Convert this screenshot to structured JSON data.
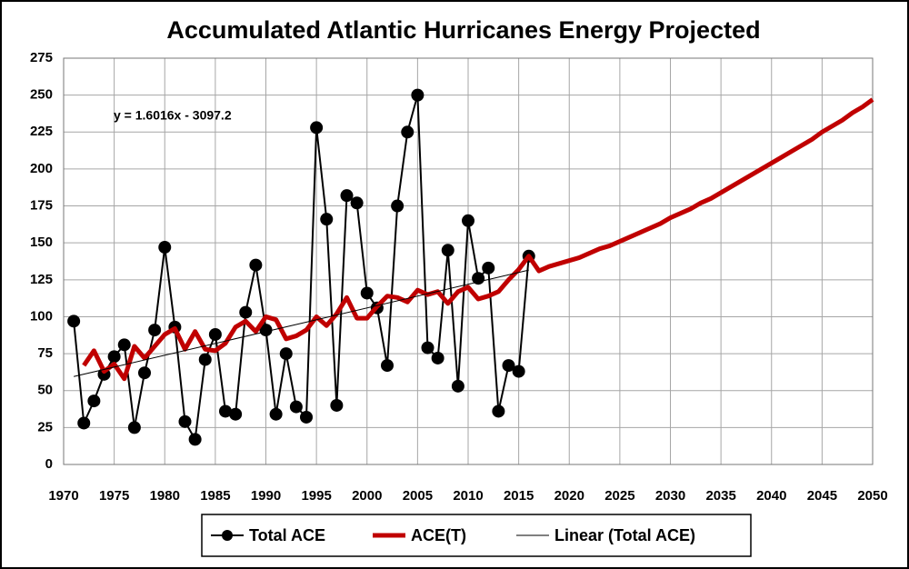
{
  "chart_data": {
    "type": "line",
    "title": "Accumulated Atlantic Hurricanes Energy Projected",
    "annotation": "y = 1.6016x - 3097.2",
    "xlim": [
      1970,
      2050
    ],
    "xticks": [
      1970,
      1975,
      1980,
      1985,
      1990,
      1995,
      2000,
      2005,
      2010,
      2015,
      2020,
      2025,
      2030,
      2035,
      2040,
      2045,
      2050
    ],
    "ylim": [
      0,
      275
    ],
    "yticks": [
      0,
      25,
      50,
      75,
      100,
      125,
      150,
      175,
      200,
      225,
      250,
      275
    ],
    "grid": true,
    "legend": "bottom",
    "series": [
      {
        "name": "Total ACE",
        "color": "#000000",
        "marker": "circle",
        "line_width": 2,
        "x": [
          1971,
          1972,
          1973,
          1974,
          1975,
          1976,
          1977,
          1978,
          1979,
          1980,
          1981,
          1982,
          1983,
          1984,
          1985,
          1986,
          1987,
          1988,
          1989,
          1990,
          1991,
          1992,
          1993,
          1994,
          1995,
          1996,
          1997,
          1998,
          1999,
          2000,
          2001,
          2002,
          2003,
          2004,
          2005,
          2006,
          2007,
          2008,
          2009,
          2010,
          2011,
          2012,
          2013,
          2014,
          2015,
          2016
        ],
        "values": [
          97,
          28,
          43,
          61,
          73,
          81,
          25,
          62,
          91,
          147,
          93,
          29,
          17,
          71,
          88,
          36,
          34,
          103,
          135,
          91,
          34,
          75,
          39,
          32,
          228,
          166,
          40,
          182,
          177,
          116,
          106,
          67,
          175,
          225,
          250,
          79,
          72,
          145,
          53,
          165,
          126,
          133,
          36,
          67,
          63,
          141
        ]
      },
      {
        "name": "ACE(T)",
        "color": "#c00000",
        "line_width": 5,
        "x": [
          1972,
          1973,
          1974,
          1975,
          1976,
          1977,
          1978,
          1979,
          1980,
          1981,
          1982,
          1983,
          1984,
          1985,
          1986,
          1987,
          1988,
          1989,
          1990,
          1991,
          1992,
          1993,
          1994,
          1995,
          1996,
          1997,
          1998,
          1999,
          2000,
          2001,
          2002,
          2003,
          2004,
          2005,
          2006,
          2007,
          2008,
          2009,
          2010,
          2011,
          2012,
          2013,
          2014,
          2015,
          2016,
          2017,
          2018,
          2019,
          2020,
          2021,
          2022,
          2023,
          2024,
          2025,
          2026,
          2027,
          2028,
          2029,
          2030,
          2031,
          2032,
          2033,
          2034,
          2035,
          2036,
          2037,
          2038,
          2039,
          2040,
          2041,
          2042,
          2043,
          2044,
          2045,
          2046,
          2047,
          2048,
          2049,
          2050
        ],
        "values": [
          67,
          77,
          63,
          68,
          58,
          80,
          72,
          80,
          88,
          92,
          78,
          90,
          78,
          77,
          82,
          93,
          97,
          90,
          100,
          98,
          85,
          87,
          91,
          100,
          94,
          102,
          113,
          99,
          99,
          107,
          114,
          113,
          110,
          118,
          115,
          117,
          109,
          117,
          120,
          112,
          114,
          117,
          125,
          132,
          141,
          131,
          134,
          136,
          138,
          140,
          143,
          146,
          148,
          151,
          154,
          157,
          160,
          163,
          167,
          170,
          173,
          177,
          180,
          184,
          188,
          192,
          196,
          200,
          204,
          208,
          212,
          216,
          220,
          225,
          229,
          233,
          238,
          242,
          247
        ]
      },
      {
        "name": "Linear (Total ACE)",
        "color": "#000000",
        "line_width": 1,
        "x": [
          1971,
          2016
        ],
        "values": [
          59.5,
          131.6
        ]
      }
    ]
  }
}
